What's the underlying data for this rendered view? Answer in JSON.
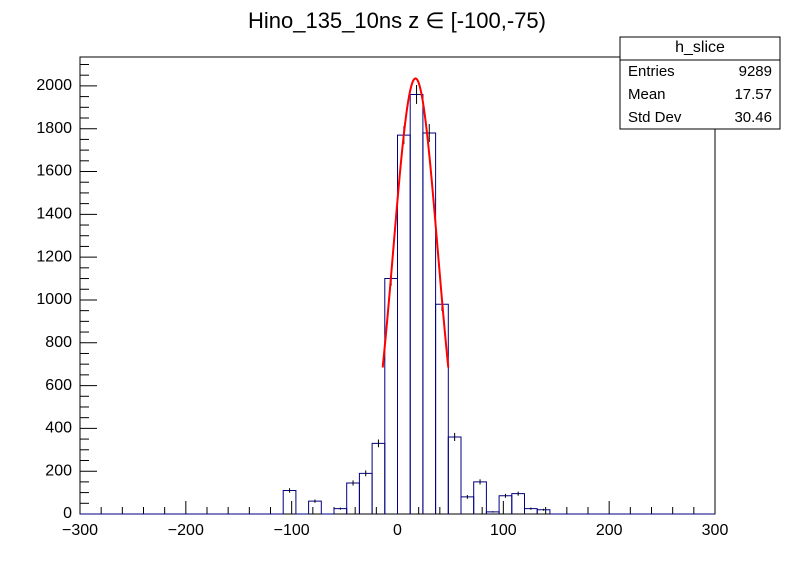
{
  "chart_data": {
    "type": "histogram",
    "title": "Hino_135_10ns z  ∈ [-100,-75)",
    "bins": [
      -300,
      -288,
      -276,
      -264,
      -252,
      -240,
      -228,
      -216,
      -204,
      -192,
      -180,
      -168,
      -156,
      -144,
      -132,
      -120,
      -108,
      -96,
      -84,
      -72,
      -60,
      -48,
      -36,
      -24,
      -12,
      0,
      12,
      24,
      36,
      48,
      60,
      72,
      84,
      96,
      108,
      120,
      132,
      144,
      156,
      168,
      180,
      192,
      204,
      216,
      228,
      240,
      252,
      264,
      276,
      288,
      300
    ],
    "values": [
      0,
      0,
      0,
      0,
      0,
      0,
      0,
      0,
      0,
      0,
      0,
      0,
      0,
      0,
      0,
      0,
      110,
      0,
      60,
      0,
      25,
      145,
      190,
      330,
      1100,
      1770,
      1960,
      1780,
      980,
      360,
      80,
      150,
      10,
      85,
      95,
      25,
      20,
      0,
      0,
      0,
      0,
      0,
      0,
      0,
      0,
      0,
      0,
      0,
      0,
      0
    ],
    "color": "#000080",
    "fit": {
      "color": "#ff0000",
      "constant": 2035,
      "mean": 17,
      "sigma": 21,
      "range": [
        -14,
        48
      ]
    },
    "xlim": [
      -300,
      300
    ],
    "xticks": [
      {
        "value": -300,
        "label": "−300"
      },
      {
        "value": -200,
        "label": "−200"
      },
      {
        "value": -100,
        "label": "−100"
      },
      0,
      100,
      200,
      300
    ],
    "ylim": [
      0,
      2135
    ],
    "yticks": [
      0,
      200,
      400,
      600,
      800,
      1000,
      1200,
      1400,
      1600,
      1800,
      2000
    ],
    "stats": {
      "name": "h_slice",
      "rows": [
        [
          "Entries",
          "9289"
        ],
        [
          "Mean",
          "17.57"
        ],
        [
          "Std Dev",
          "30.46"
        ]
      ]
    }
  }
}
